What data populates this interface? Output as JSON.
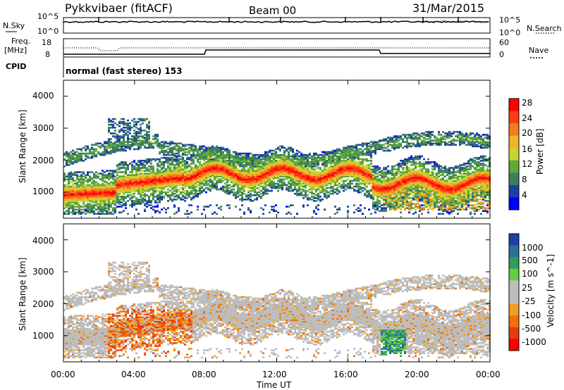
{
  "header": {
    "station": "Pykkvibaer (fitACF)",
    "beam": "Beam 00",
    "date": "31/Mar/2015"
  },
  "panels": {
    "nsky": {
      "left_label": "N.Sky",
      "left_ticks": [
        "10^5",
        "10^0"
      ],
      "right_label": "N.Search",
      "right_ticks": [
        "10^5",
        "10^0"
      ]
    },
    "freq": {
      "left_label_1": "Freq.",
      "left_label_2": "[MHz]",
      "left_ticks": [
        "18",
        "8"
      ],
      "right_label": "Nave",
      "right_ticks": [
        "60",
        "0"
      ]
    },
    "cpid": {
      "label": "CPID",
      "text": "normal (fast stereo) 153"
    }
  },
  "chart_data": [
    {
      "type": "heatmap",
      "name": "power",
      "ylabel": "Slant Range [km]",
      "y_ticks": [
        "4000",
        "3000",
        "2000",
        "1000"
      ],
      "colorbar_label": "Power [dB]",
      "colorbar_ticks": [
        "28",
        "24",
        "20",
        "16",
        "12",
        "8",
        "4"
      ],
      "colors": [
        "#0000ff",
        "#1c3fa6",
        "#3c7f5e",
        "#5fa83a",
        "#c7d435",
        "#f1b32a",
        "#f07d1e",
        "#ff3a14",
        "#ff0000"
      ]
    },
    {
      "type": "heatmap",
      "name": "velocity",
      "ylabel": "Slant Range [km]",
      "y_ticks": [
        "4000",
        "3000",
        "2000",
        "1000"
      ],
      "colorbar_label": "Velocity [m s^-1]",
      "colorbar_ticks": [
        "1000",
        "500",
        "100",
        "25",
        "-25",
        "-100",
        "-500",
        "-1000"
      ],
      "x_ticks": [
        "00:00",
        "04:00",
        "08:00",
        "12:00",
        "16:00",
        "20:00",
        "00:00"
      ],
      "xlabel": "Time UT",
      "colors": [
        "#1f3fa8",
        "#2b6f9a",
        "#2d9e5a",
        "#66cc44",
        "#bdbdbd",
        "#bdbdbd",
        "#f0a020",
        "#f07010",
        "#e83a10",
        "#ff0000"
      ]
    }
  ]
}
